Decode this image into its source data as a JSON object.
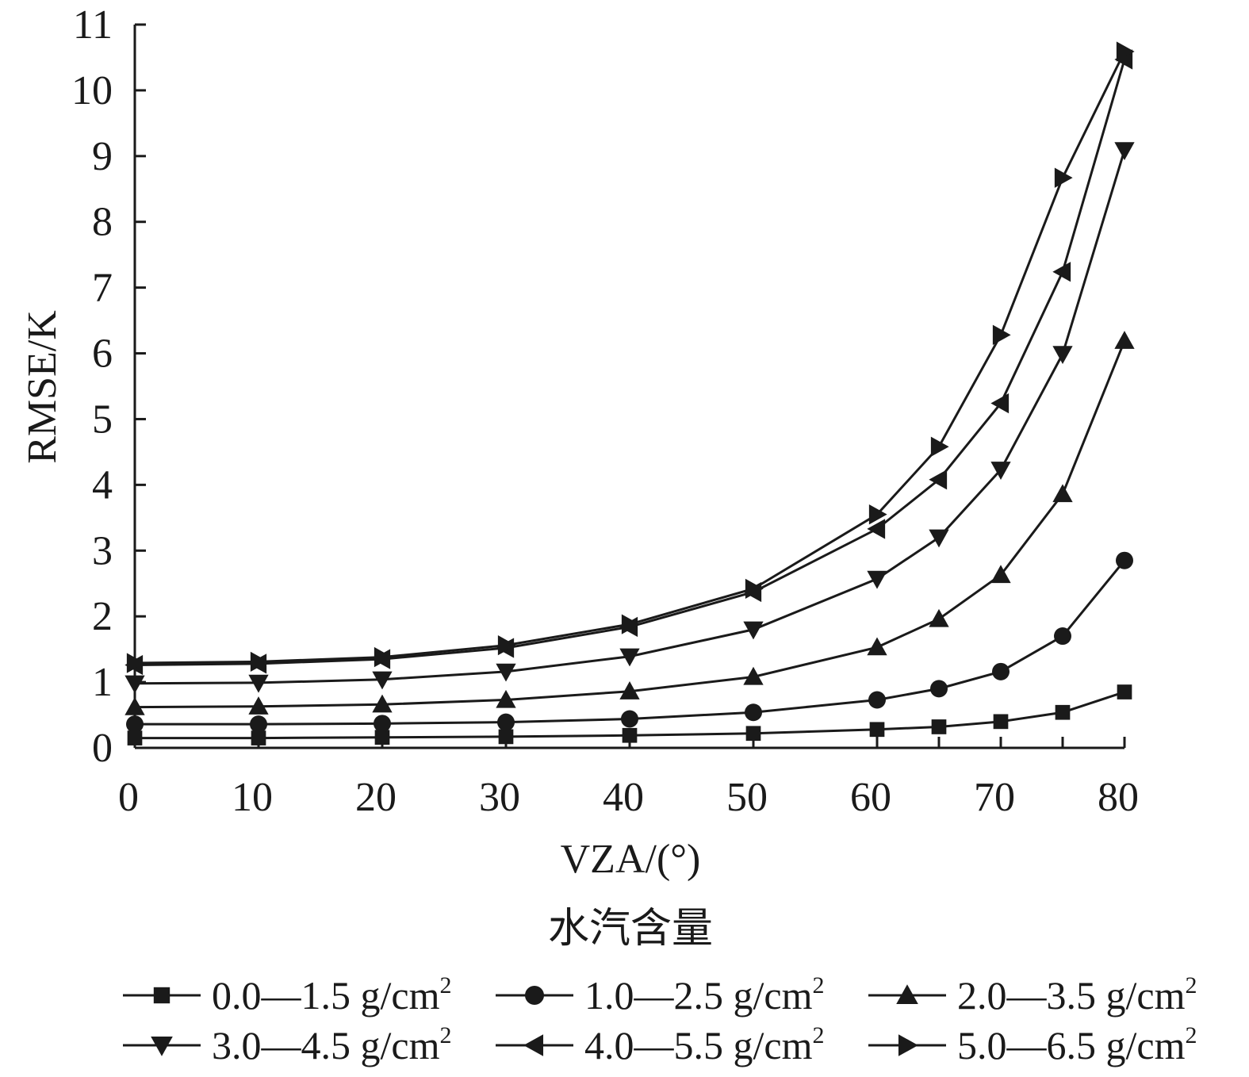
{
  "chart_data": {
    "type": "line",
    "title": "",
    "xlabel": "VZA/(°)",
    "ylabel": "RMSE/K",
    "xlim": [
      0,
      80
    ],
    "ylim": [
      0,
      11
    ],
    "x_ticks": [
      0,
      10,
      20,
      30,
      40,
      50,
      60,
      70,
      80
    ],
    "y_ticks": [
      0,
      1,
      2,
      3,
      4,
      5,
      6,
      7,
      8,
      9,
      10,
      11
    ],
    "x": [
      0,
      10,
      20,
      30,
      40,
      50,
      60,
      65,
      70,
      75,
      80
    ],
    "legend_title": "水汽含量",
    "legend_position": "bottom",
    "grid": false,
    "series": [
      {
        "name": "0.0—1.5 g/cm",
        "superscript": "2",
        "marker": "square",
        "values": [
          0.15,
          0.15,
          0.16,
          0.17,
          0.19,
          0.22,
          0.28,
          0.32,
          0.4,
          0.54,
          0.85
        ]
      },
      {
        "name": "1.0—2.5 g/cm",
        "superscript": "2",
        "marker": "circle",
        "values": [
          0.36,
          0.36,
          0.37,
          0.39,
          0.44,
          0.54,
          0.73,
          0.9,
          1.16,
          1.7,
          2.85
        ]
      },
      {
        "name": "2.0—3.5 g/cm",
        "superscript": "2",
        "marker": "triangle-up",
        "values": [
          0.62,
          0.63,
          0.66,
          0.73,
          0.86,
          1.08,
          1.53,
          1.96,
          2.63,
          3.86,
          6.19
        ]
      },
      {
        "name": "3.0—4.5 g/cm",
        "superscript": "2",
        "marker": "triangle-down",
        "values": [
          0.98,
          0.99,
          1.04,
          1.16,
          1.39,
          1.8,
          2.57,
          3.2,
          4.23,
          5.99,
          9.09
        ]
      },
      {
        "name": "4.0—5.5 g/cm",
        "superscript": "2",
        "marker": "triangle-left",
        "values": [
          1.26,
          1.28,
          1.35,
          1.52,
          1.84,
          2.37,
          3.33,
          4.08,
          5.24,
          7.24,
          10.47
        ]
      },
      {
        "name": "5.0—6.5 g/cm",
        "superscript": "2",
        "marker": "triangle-right",
        "values": [
          1.29,
          1.31,
          1.38,
          1.56,
          1.88,
          2.42,
          3.55,
          4.58,
          6.28,
          8.67,
          10.59
        ]
      }
    ]
  }
}
